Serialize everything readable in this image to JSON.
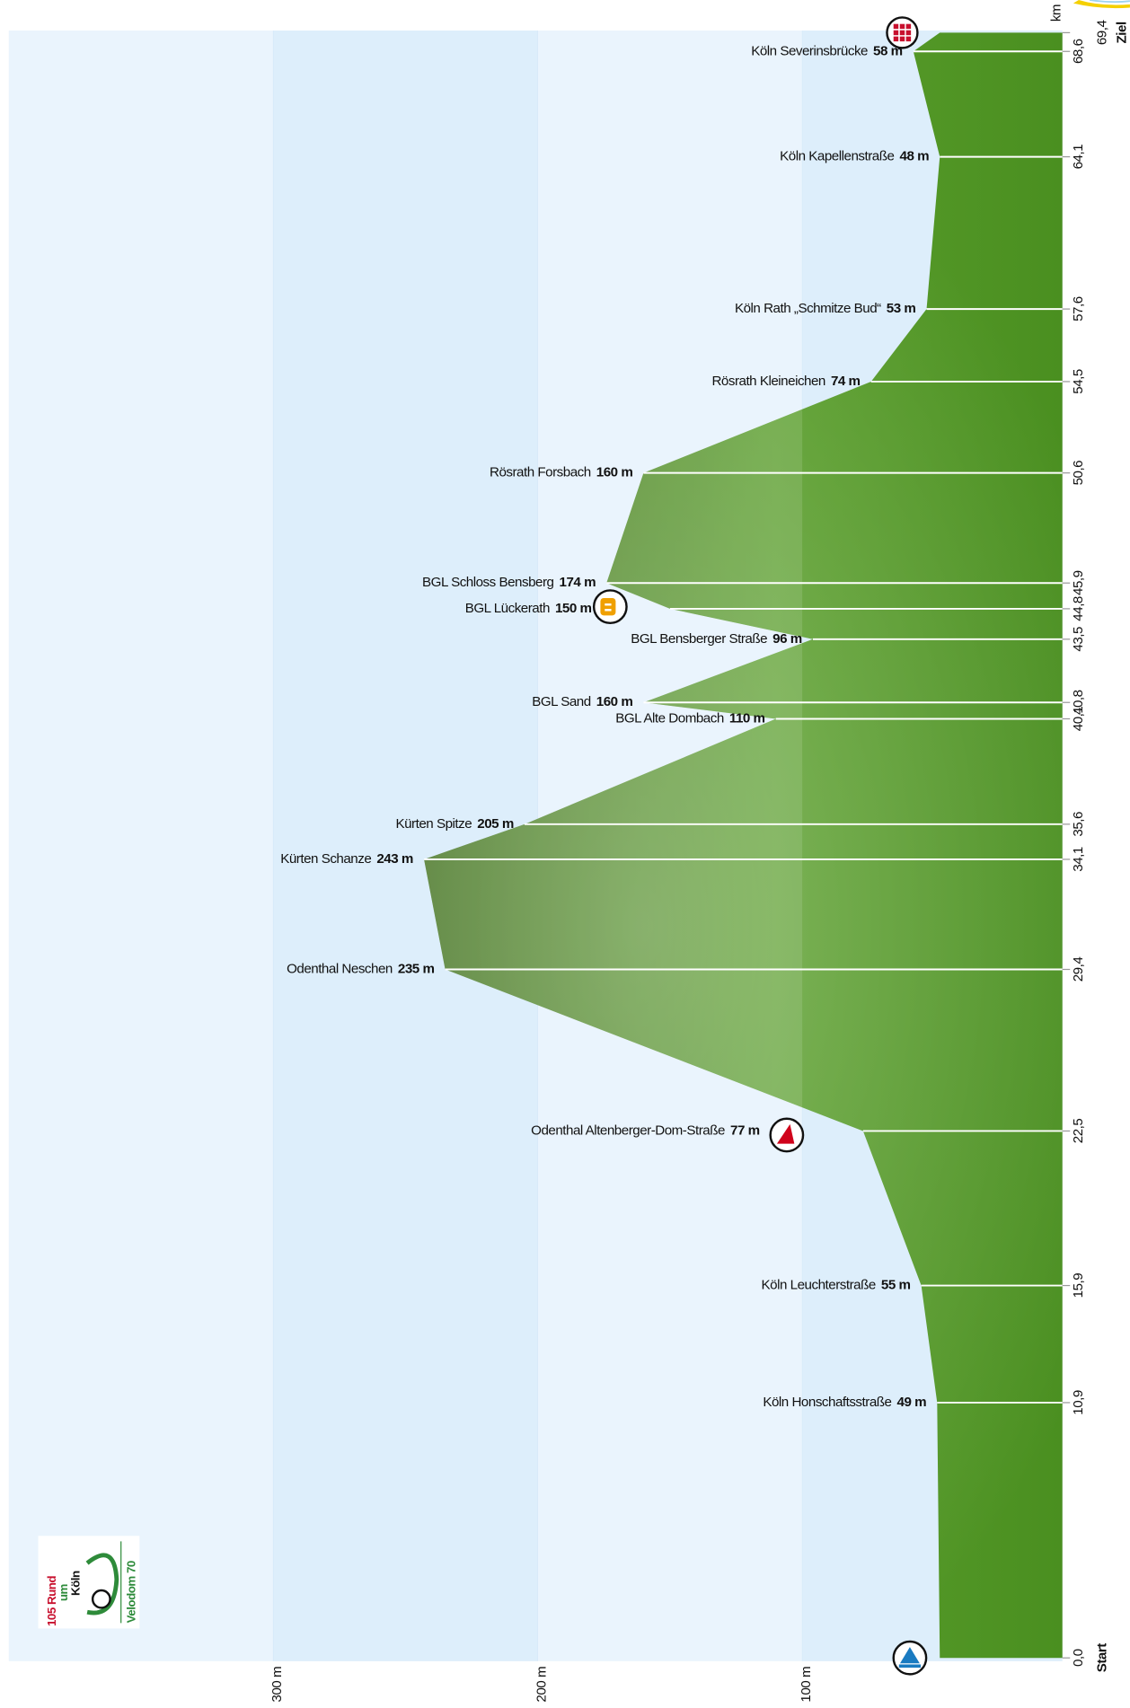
{
  "chart_data": {
    "type": "area",
    "color": "#4a8f20",
    "x": [
      0.0,
      10.9,
      15.9,
      22.5,
      29.4,
      34.1,
      35.6,
      40.1,
      40.8,
      43.5,
      44.8,
      45.9,
      50.6,
      54.5,
      57.6,
      64.1,
      68.6,
      69.4
    ],
    "values": [
      48,
      49,
      55,
      77,
      235,
      243,
      205,
      110,
      160,
      96,
      150,
      174,
      160,
      74,
      53,
      48,
      58,
      48
    ],
    "names": [
      null,
      "Köln Honschaftsstraße",
      "Köln Leuchterstraße",
      "Odenthal Altenberger-Dom-Straße",
      "Odenthal Neschen",
      "Kürten Schanze",
      "Kürten Spitze",
      "BGL Alte Dombach",
      "BGL Sand",
      "BGL Bensberger Straße",
      "BGL Lückerath",
      "BGL Schloss Bensberg",
      "Rösrath Forsbach",
      "Rösrath Kleineichen",
      "Köln Rath „Schmitze Bud“",
      "Köln Kapellenstraße",
      "Köln Severinsbrücke",
      null
    ],
    "value_labels": [
      null,
      "49 m",
      "55 m",
      "77 m",
      "235 m",
      "243 m",
      "205 m",
      "110 m",
      "160 m",
      "96 m",
      "150 m",
      "174 m",
      "160 m",
      "74 m",
      "53 m",
      "48 m",
      "58 m",
      null
    ],
    "xlim": [
      0.0,
      69.4
    ],
    "xticks": [
      {
        "value": 0.0,
        "label": "0,0"
      },
      {
        "value": 10.9,
        "label": "10,9"
      },
      {
        "value": 15.9,
        "label": "15,9"
      },
      {
        "value": 22.5,
        "label": "22,5"
      },
      {
        "value": 29.4,
        "label": "29,4"
      },
      {
        "value": 34.1,
        "label": "34,1"
      },
      {
        "value": 35.6,
        "label": "35,6"
      },
      {
        "value": 40.1,
        "label": "40,1"
      },
      {
        "value": 40.8,
        "label": "40,8"
      },
      {
        "value": 43.5,
        "label": "43,5"
      },
      {
        "value": 44.8,
        "label": "44,8"
      },
      {
        "value": 45.9,
        "label": "45,9"
      },
      {
        "value": 50.6,
        "label": "50,6"
      },
      {
        "value": 54.5,
        "label": "54,5"
      },
      {
        "value": 57.6,
        "label": "57,6"
      },
      {
        "value": 64.1,
        "label": "64,1"
      },
      {
        "value": 68.6,
        "label": "68,6"
      },
      {
        "value": 69.4,
        "label": "69,4"
      }
    ],
    "x_axis_label": "km",
    "start_label": "Start",
    "end_label": "Ziel",
    "ylim": [
      0,
      400
    ],
    "yticks": [
      {
        "value": 100,
        "label": "100 m"
      },
      {
        "value": 200,
        "label": "200 m"
      },
      {
        "value": 300,
        "label": "300 m"
      }
    ]
  },
  "logo": {
    "lines": [
      "105 Rund",
      "um",
      "Köln"
    ],
    "sub": "Velodom 70"
  }
}
